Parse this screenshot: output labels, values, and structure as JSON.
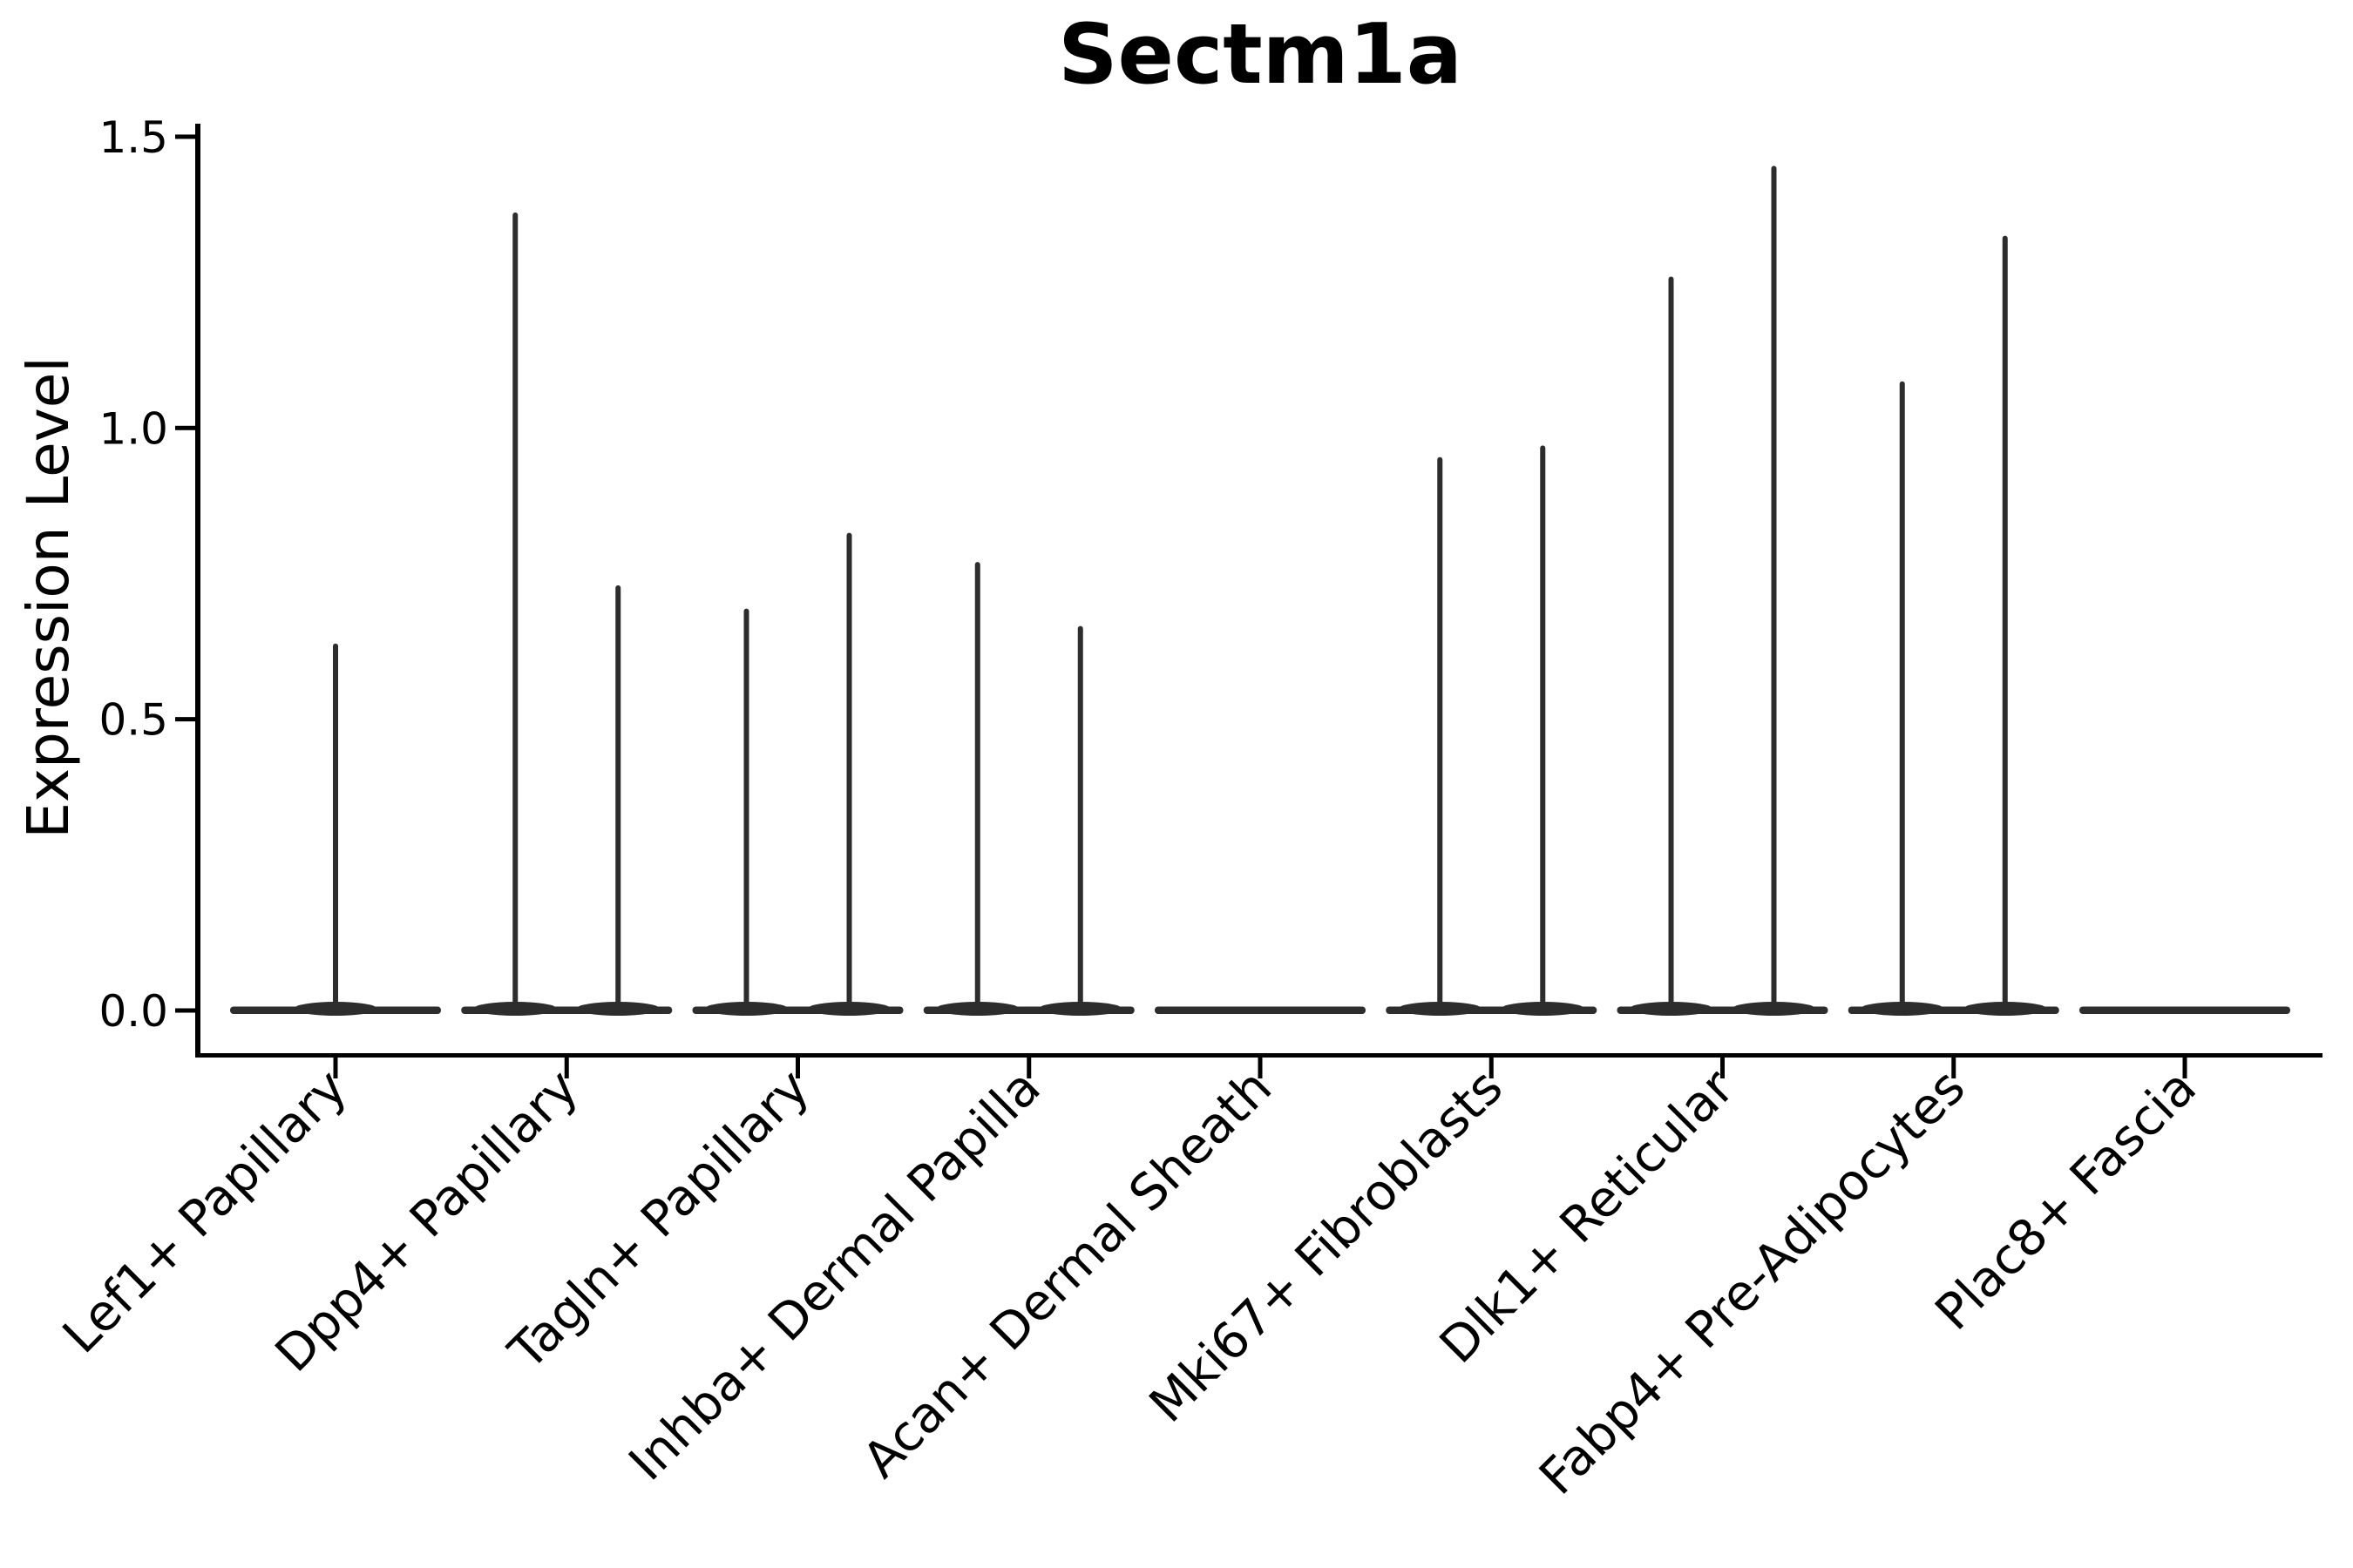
{
  "figure": {
    "background": "#ffffff"
  },
  "chart_data": {
    "type": "violin",
    "title": "Sectm1a",
    "xlabel": "",
    "ylabel": "Expression Level",
    "ylim": [
      0.0,
      1.5
    ],
    "y_ticks": [
      {
        "value": 0.0,
        "label": "0.0"
      },
      {
        "value": 0.5,
        "label": "0.5"
      },
      {
        "value": 1.0,
        "label": "1.0"
      },
      {
        "value": 1.5,
        "label": "1.5"
      }
    ],
    "x_tick_rotation": 45,
    "grid": "off",
    "legend": "none",
    "categories": [
      "Lef1+ Papillary",
      "Dpp4+ Papillary",
      "Tagln+ Papillary",
      "Inhba+ Dermal Papilla",
      "Acan+ Dermal Sheath",
      "Mki67+ Fibroblasts",
      "Dlk1+ Reticular",
      "Fabp4+ Pre-Adipocytes",
      "Plac8+ Fascia"
    ],
    "violins": [
      {
        "category": "Lef1+ Papillary",
        "base_value": 0.0,
        "spikes": [
          {
            "position": "center",
            "value": 0.63
          }
        ]
      },
      {
        "category": "Dpp4+ Papillary",
        "base_value": 0.0,
        "spikes": [
          {
            "position": "left",
            "value": 1.37
          },
          {
            "position": "right",
            "value": 0.73
          }
        ]
      },
      {
        "category": "Tagln+ Papillary",
        "base_value": 0.0,
        "spikes": [
          {
            "position": "left",
            "value": 0.69
          },
          {
            "position": "right",
            "value": 0.82
          }
        ]
      },
      {
        "category": "Inhba+ Dermal Papilla",
        "base_value": 0.0,
        "spikes": [
          {
            "position": "left",
            "value": 0.77
          },
          {
            "position": "right",
            "value": 0.66
          }
        ]
      },
      {
        "category": "Acan+ Dermal Sheath",
        "base_value": 0.0,
        "spikes": []
      },
      {
        "category": "Mki67+ Fibroblasts",
        "base_value": 0.0,
        "spikes": [
          {
            "position": "left",
            "value": 0.95
          },
          {
            "position": "right",
            "value": 0.97
          }
        ]
      },
      {
        "category": "Dlk1+ Reticular",
        "base_value": 0.0,
        "spikes": [
          {
            "position": "left",
            "value": 1.26
          },
          {
            "position": "right",
            "value": 1.45
          }
        ]
      },
      {
        "category": "Fabp4+ Pre-Adipocytes",
        "base_value": 0.0,
        "spikes": [
          {
            "position": "left",
            "value": 1.08
          },
          {
            "position": "right",
            "value": 1.33
          }
        ]
      },
      {
        "category": "Plac8+ Fascia",
        "base_value": 0.0,
        "spikes": []
      }
    ],
    "colors": {
      "violin": "#2d2d2d",
      "axis": "#000000",
      "text": "#000000",
      "background": "#ffffff"
    }
  }
}
